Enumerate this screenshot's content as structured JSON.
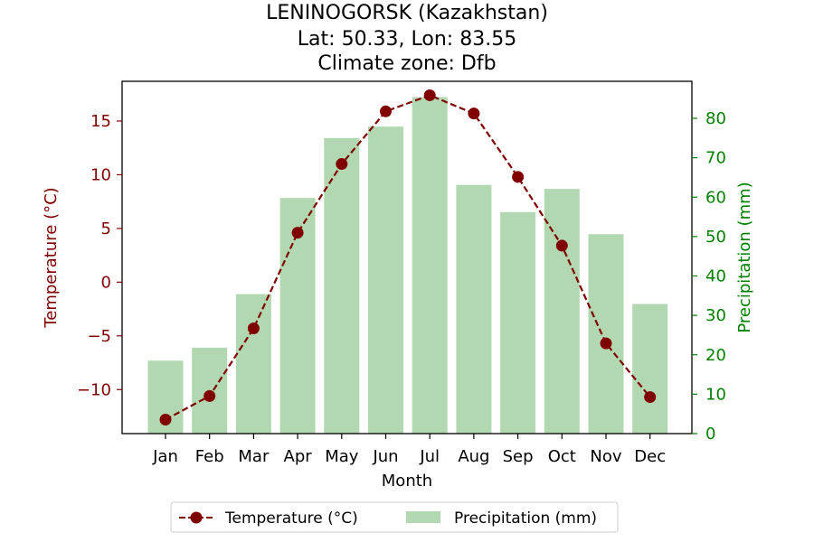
{
  "chart_data": {
    "type": "bar+line",
    "title_lines": [
      "LENINOGORSK (Kazakhstan)",
      "Lat: 50.33, Lon: 83.55",
      "Climate zone: Dfb"
    ],
    "xlabel": "Month",
    "categories": [
      "Jan",
      "Feb",
      "Mar",
      "Apr",
      "May",
      "Jun",
      "Jul",
      "Aug",
      "Sep",
      "Oct",
      "Nov",
      "Dec"
    ],
    "temperature": {
      "name": "Temperature (°C)",
      "axis_label": "Temperature (°C)",
      "color": "#800000",
      "values": [
        -12.8,
        -10.6,
        -4.3,
        4.6,
        11.0,
        15.9,
        17.4,
        15.7,
        9.8,
        3.4,
        -5.7,
        -10.7
      ],
      "ylim": [
        -14.1,
        18.7
      ],
      "ticks": [
        -10,
        -5,
        0,
        5,
        10,
        15
      ],
      "tick_labels": [
        "−10",
        "−5",
        "0",
        "5",
        "10",
        "15"
      ]
    },
    "precipitation": {
      "name": "Precipitation (mm)",
      "axis_label": "Precipitation (mm)",
      "color": "#008000",
      "bar_color": "#b2d8b2",
      "values": [
        18.5,
        21.8,
        35.4,
        59.8,
        75.0,
        77.9,
        85.4,
        63.1,
        56.2,
        62.1,
        50.6,
        32.9
      ],
      "ylim": [
        0,
        89.4
      ],
      "ticks": [
        0,
        10,
        20,
        30,
        40,
        50,
        60,
        70,
        80
      ],
      "tick_labels": [
        "0",
        "10",
        "20",
        "30",
        "40",
        "50",
        "60",
        "70",
        "80"
      ]
    },
    "legend_position": "bottom-center",
    "grid": false
  }
}
